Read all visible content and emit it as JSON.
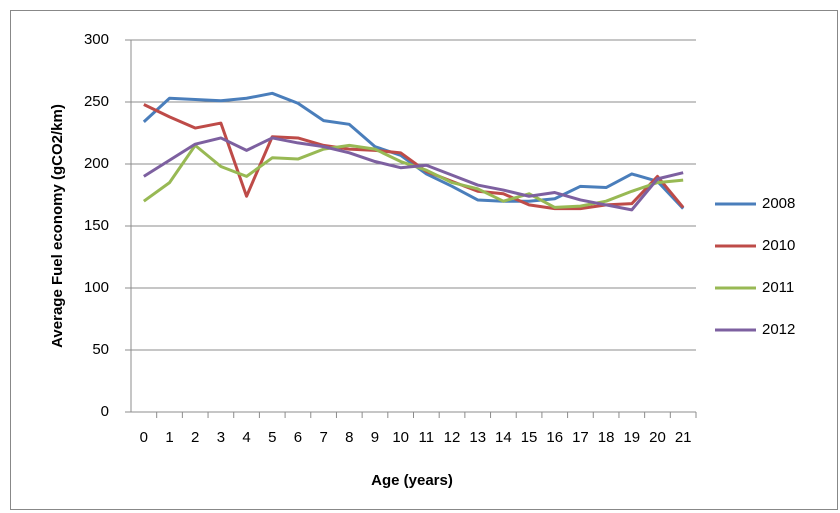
{
  "chart_data": {
    "type": "line",
    "x_label": "Age (years)",
    "y_label": "Average Fuel economy (gCO2/km)",
    "categories": [
      "0",
      "1",
      "2",
      "3",
      "4",
      "5",
      "6",
      "7",
      "8",
      "9",
      "10",
      "11",
      "12",
      "13",
      "14",
      "15",
      "16",
      "17",
      "18",
      "19",
      "20",
      "21"
    ],
    "series": [
      {
        "name": "2008",
        "color": "#4a7ebb",
        "values": [
          234,
          253,
          252,
          251,
          253,
          257,
          249,
          235,
          232,
          214,
          207,
          192,
          182,
          171,
          170,
          170,
          172,
          182,
          181,
          192,
          186,
          164
        ]
      },
      {
        "name": "2010",
        "color": "#be4b48",
        "values": [
          248,
          238,
          229,
          233,
          174,
          222,
          221,
          215,
          212,
          211,
          209,
          194,
          186,
          178,
          176,
          167,
          164,
          164,
          167,
          168,
          190,
          165
        ]
      },
      {
        "name": "2011",
        "color": "#98b954",
        "values": [
          170,
          185,
          215,
          198,
          190,
          205,
          204,
          212,
          215,
          212,
          202,
          195,
          185,
          180,
          170,
          176,
          165,
          166,
          170,
          178,
          185,
          187
        ]
      },
      {
        "name": "2012",
        "color": "#7d60a0",
        "values": [
          190,
          203,
          216,
          221,
          211,
          221,
          217,
          214,
          209,
          202,
          197,
          199,
          191,
          183,
          179,
          174,
          177,
          171,
          167,
          163,
          188,
          193
        ]
      }
    ],
    "ylim": [
      0,
      300
    ],
    "yticks": [
      0,
      50,
      100,
      150,
      200,
      250,
      300
    ],
    "grid": true,
    "legend": "right"
  }
}
